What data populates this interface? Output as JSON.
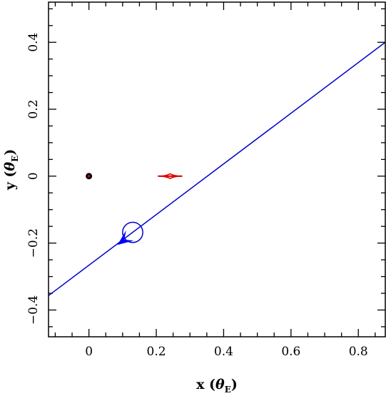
{
  "chart_data": {
    "type": "line",
    "title": "",
    "xlabel": "x",
    "xlabel_unit_symbol": "θ",
    "xlabel_unit_sub": "E",
    "ylabel": "y",
    "ylabel_unit_symbol": "θ",
    "ylabel_unit_sub": "E",
    "xlim": [
      -0.12,
      0.88
    ],
    "ylim": [
      -0.48,
      0.52
    ],
    "x_ticks": [
      {
        "v": 0,
        "label": "0"
      },
      {
        "v": 0.2,
        "label": "0.2"
      },
      {
        "v": 0.4,
        "label": "0.4"
      },
      {
        "v": 0.6,
        "label": "0.6"
      },
      {
        "v": 0.8,
        "label": "0.8"
      }
    ],
    "y_ticks": [
      {
        "v": -0.4,
        "label": "−0.4"
      },
      {
        "v": -0.2,
        "label": "−0.2"
      },
      {
        "v": 0,
        "label": "0"
      },
      {
        "v": 0.2,
        "label": "0.2"
      },
      {
        "v": 0.4,
        "label": "0.4"
      }
    ],
    "minor_step": 0.05,
    "grid": false,
    "source_trajectory": {
      "color": "#0000cc",
      "points": [
        [
          -0.12,
          -0.357
        ],
        [
          0.88,
          0.4
        ]
      ]
    },
    "source_circle": {
      "color": "#0000cc",
      "cx": 0.13,
      "cy": -0.168,
      "r": 0.03
    },
    "direction_arrow": {
      "color": "#0000ff",
      "x": 0.105,
      "y": -0.19
    },
    "lens_primary": {
      "color": "#000000",
      "dot_color": "#cc0000",
      "x": 0.0,
      "y": 0.0
    },
    "caustic": {
      "color": "#dd0000",
      "cx": 0.241,
      "cy": 0.0,
      "half_width": 0.03,
      "half_height": 0.008
    }
  }
}
